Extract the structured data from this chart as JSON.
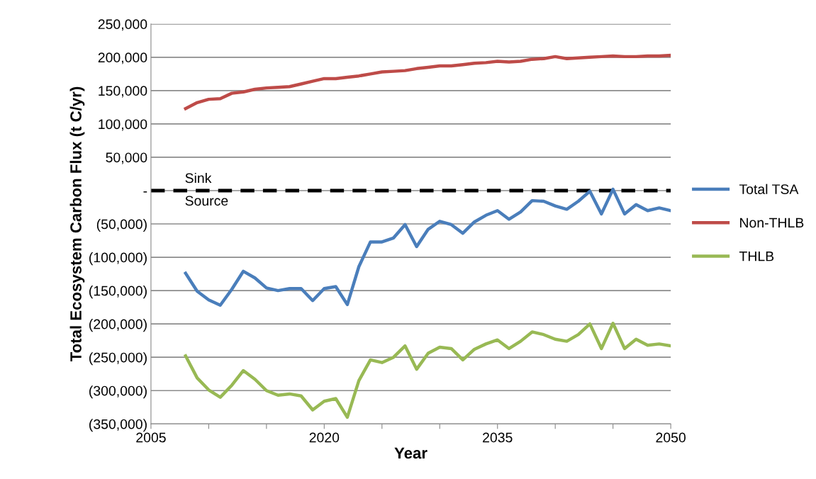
{
  "chart_data": {
    "type": "line",
    "xlabel": "Year",
    "ylabel": "Total Ecosystem Carbon Flux (t C/yr)",
    "x": [
      2008,
      2009,
      2010,
      2011,
      2012,
      2013,
      2014,
      2015,
      2016,
      2017,
      2018,
      2019,
      2020,
      2021,
      2022,
      2023,
      2024,
      2025,
      2026,
      2027,
      2028,
      2029,
      2030,
      2031,
      2032,
      2033,
      2034,
      2035,
      2036,
      2037,
      2038,
      2039,
      2040,
      2041,
      2042,
      2043,
      2044,
      2045,
      2046,
      2047,
      2048,
      2049,
      2050
    ],
    "series": [
      {
        "name": "Total TSA",
        "color": "#4a7ebb",
        "values": [
          -124000,
          -151000,
          -164000,
          -172000,
          -148000,
          -121000,
          -131000,
          -146000,
          -150000,
          -147000,
          -147000,
          -165000,
          -147000,
          -144000,
          -171000,
          -114000,
          -77000,
          -77000,
          -71000,
          -51000,
          -84000,
          -58000,
          -46000,
          -51000,
          -64000,
          -47000,
          -37000,
          -30000,
          -43000,
          -32000,
          -15000,
          -16000,
          -23000,
          -28000,
          -16000,
          -1000,
          -35000,
          2000,
          -35000,
          -21000,
          -30000,
          -26000,
          -30000
        ]
      },
      {
        "name": "Non-THLB",
        "color": "#be4b48",
        "values": [
          123000,
          132000,
          137000,
          138000,
          146000,
          148000,
          152000,
          154000,
          155000,
          156000,
          160000,
          164000,
          168000,
          168000,
          170000,
          172000,
          175000,
          178000,
          179000,
          180000,
          183000,
          185000,
          187000,
          187000,
          189000,
          191000,
          192000,
          194000,
          193000,
          194000,
          197000,
          198000,
          201000,
          198000,
          199000,
          200000,
          201000,
          202000,
          201000,
          201000,
          202000,
          202000,
          203000
        ]
      },
      {
        "name": "THLB",
        "color": "#98b954",
        "values": [
          -248000,
          -281000,
          -299000,
          -310000,
          -292000,
          -270000,
          -283000,
          -300000,
          -307000,
          -305000,
          -308000,
          -329000,
          -316000,
          -312000,
          -340000,
          -285000,
          -254000,
          -258000,
          -250000,
          -233000,
          -268000,
          -244000,
          -235000,
          -237000,
          -254000,
          -238000,
          -230000,
          -224000,
          -237000,
          -226000,
          -212000,
          -216000,
          -223000,
          -226000,
          -216000,
          -200000,
          -237000,
          -199000,
          -237000,
          -223000,
          -232000,
          -230000,
          -233000
        ]
      }
    ],
    "xlim": [
      2005,
      2050
    ],
    "xticks": [
      2005,
      {
        "value": 2010,
        "label": null
      },
      {
        "value": 2015,
        "label": null
      },
      2020,
      {
        "value": 2025,
        "label": null
      },
      {
        "value": 2030,
        "label": null
      },
      2035,
      {
        "value": 2040,
        "label": null
      },
      {
        "value": 2045,
        "label": null
      },
      2050
    ],
    "ylim": [
      -350000,
      250000
    ],
    "yticks": [
      {
        "value": 250000,
        "label": "250,000"
      },
      {
        "value": 200000,
        "label": "200,000"
      },
      {
        "value": 150000,
        "label": "150,000"
      },
      {
        "value": 100000,
        "label": "100,000"
      },
      {
        "value": 50000,
        "label": "50,000"
      },
      {
        "value": 0,
        "label": "-"
      },
      {
        "value": -50000,
        "label": "(50,000)"
      },
      {
        "value": -100000,
        "label": "(100,000)"
      },
      {
        "value": -150000,
        "label": "(150,000)"
      },
      {
        "value": -200000,
        "label": "(200,000)"
      },
      {
        "value": -250000,
        "label": "(250,000)"
      },
      {
        "value": -300000,
        "label": "(300,000)"
      },
      {
        "value": -350000,
        "label": "(350,000)"
      }
    ],
    "ref_lines": [
      {
        "axis": "y",
        "value": 0,
        "color": "#000000",
        "line_style": "dashed"
      }
    ],
    "annotations": [
      "Sink",
      "Source"
    ],
    "grid": "y",
    "legend": "right",
    "marker": "none",
    "line_style": "solid"
  }
}
